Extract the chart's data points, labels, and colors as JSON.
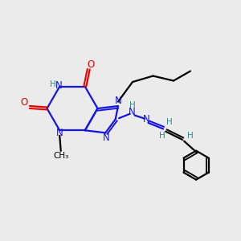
{
  "bg_color": "#ebebeb",
  "bond_color": "#1414e6",
  "n_color": "#1414e6",
  "o_color": "#e60000",
  "h_color": "#2e8b8b",
  "c_color": "#000000",
  "line_width": 1.6,
  "figsize": [
    3.0,
    3.0
  ],
  "dpi": 100,
  "xlim": [
    0,
    10
  ],
  "ylim": [
    0,
    10
  ]
}
